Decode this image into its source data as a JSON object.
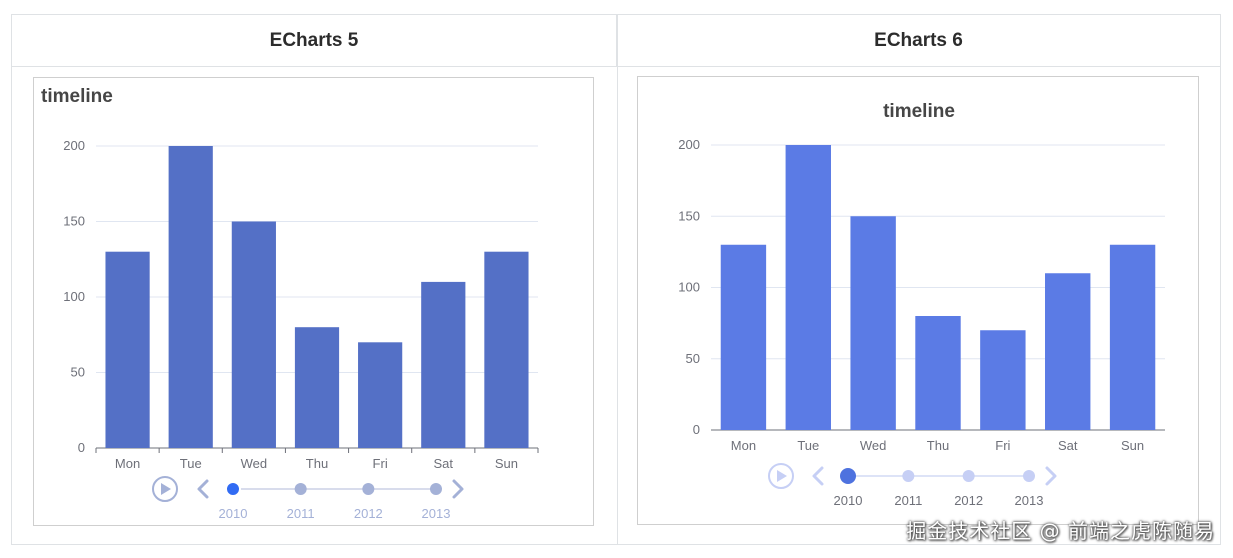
{
  "table": {
    "headers": [
      "ECharts 5",
      "ECharts 6"
    ]
  },
  "colors": {
    "v5_bar": "#5470c6",
    "v6_bar": "#5b7be5",
    "v5_timeline": "#a4b1d7",
    "v6_timeline": "#c6cff5",
    "axis_text": "#6e7079",
    "grid": "#e0e6f1"
  },
  "chart_data": [
    {
      "type": "bar",
      "title": "timeline",
      "categories": [
        "Mon",
        "Tue",
        "Wed",
        "Thu",
        "Fri",
        "Sat",
        "Sun"
      ],
      "values": [
        130,
        200,
        150,
        80,
        70,
        110,
        130
      ],
      "ylim": [
        0,
        200
      ],
      "yticks": [
        0,
        50,
        100,
        150,
        200
      ],
      "grid": true,
      "timeline": {
        "labels": [
          "2010",
          "2011",
          "2012",
          "2013"
        ],
        "current": "2010"
      }
    },
    {
      "type": "bar",
      "title": "timeline",
      "categories": [
        "Mon",
        "Tue",
        "Wed",
        "Thu",
        "Fri",
        "Sat",
        "Sun"
      ],
      "values": [
        130,
        200,
        150,
        80,
        70,
        110,
        130
      ],
      "ylim": [
        0,
        200
      ],
      "yticks": [
        0,
        50,
        100,
        150,
        200
      ],
      "grid": true,
      "timeline": {
        "labels": [
          "2010",
          "2011",
          "2012",
          "2013"
        ],
        "current": "2010"
      }
    }
  ],
  "watermark": "掘金技术社区 @ 前端之虎陈随易"
}
